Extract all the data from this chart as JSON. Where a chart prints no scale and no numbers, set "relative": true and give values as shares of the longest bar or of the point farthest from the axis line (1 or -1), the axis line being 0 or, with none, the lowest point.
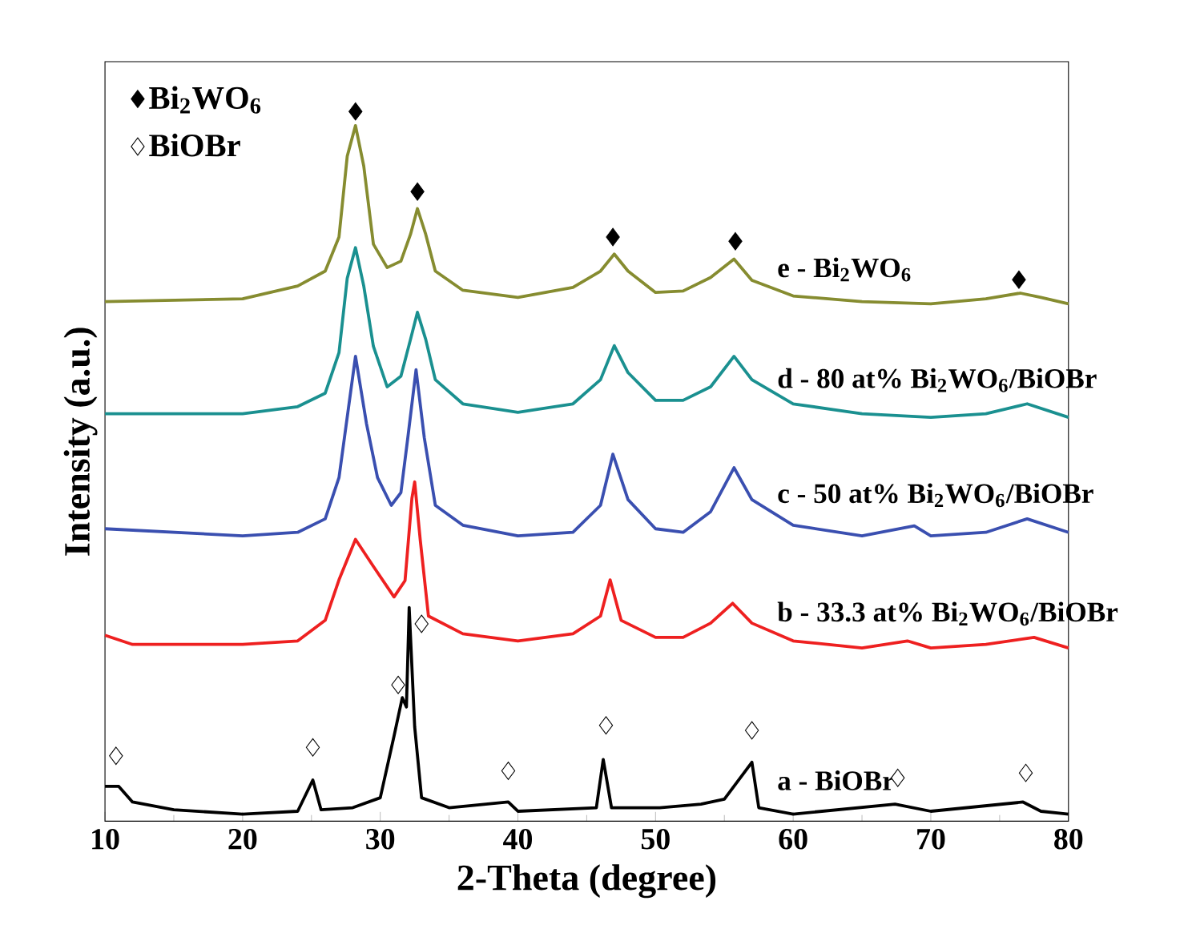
{
  "chart_data": {
    "type": "line",
    "relative": true,
    "xlabel": "2-Theta (degree)",
    "ylabel": "Intensity (a.u.)",
    "xlim": [
      10,
      80
    ],
    "xticks": [
      10,
      20,
      30,
      40,
      50,
      60,
      70,
      80
    ],
    "grid": false,
    "legend": "top left",
    "line_style": "solid",
    "series": [
      {
        "marker": "none",
        "color": "#868c30",
        "x": [
          10,
          20,
          24,
          26,
          27,
          27.6,
          28.2,
          28.8,
          29.5,
          30.5,
          31.5,
          32.2,
          32.7,
          33.3,
          34,
          36,
          40,
          44,
          46,
          47,
          48,
          50,
          52,
          54,
          55.7,
          57,
          60,
          65,
          70,
          74,
          76.5,
          78,
          80
        ],
        "values": [
          0.732,
          0.736,
          0.754,
          0.775,
          0.823,
          0.937,
          0.98,
          0.923,
          0.813,
          0.78,
          0.789,
          0.827,
          0.863,
          0.827,
          0.775,
          0.748,
          0.738,
          0.752,
          0.775,
          0.799,
          0.775,
          0.745,
          0.747,
          0.766,
          0.792,
          0.762,
          0.74,
          0.732,
          0.729,
          0.736,
          0.744,
          0.738,
          0.729
        ]
      },
      {
        "marker": "none",
        "color": "#1a9090",
        "x": [
          10,
          20,
          24,
          26,
          27,
          27.6,
          28.2,
          28.8,
          29.5,
          30.5,
          31.5,
          32.2,
          32.7,
          33.3,
          34,
          36,
          40,
          44,
          46,
          47,
          48,
          50,
          52,
          54,
          55.7,
          57,
          60,
          65,
          70,
          74,
          77,
          80
        ],
        "values": [
          0.574,
          0.574,
          0.584,
          0.603,
          0.66,
          0.765,
          0.808,
          0.754,
          0.669,
          0.612,
          0.627,
          0.679,
          0.717,
          0.679,
          0.622,
          0.588,
          0.576,
          0.588,
          0.622,
          0.67,
          0.632,
          0.593,
          0.593,
          0.612,
          0.655,
          0.622,
          0.588,
          0.574,
          0.569,
          0.574,
          0.588,
          0.569
        ]
      },
      {
        "marker": "none",
        "color": "#3a4fb0",
        "x": [
          10,
          20,
          24,
          26,
          27,
          27.4,
          28.2,
          29,
          29.8,
          30.8,
          31.5,
          32,
          32.6,
          33.2,
          34,
          36,
          40,
          44,
          46,
          46.9,
          48,
          50,
          52,
          54,
          55.7,
          57,
          60,
          65,
          68.8,
          70,
          74,
          77,
          80
        ],
        "values": [
          0.412,
          0.402,
          0.407,
          0.426,
          0.484,
          0.541,
          0.655,
          0.56,
          0.484,
          0.445,
          0.463,
          0.54,
          0.636,
          0.54,
          0.445,
          0.417,
          0.402,
          0.407,
          0.445,
          0.517,
          0.453,
          0.412,
          0.407,
          0.436,
          0.498,
          0.453,
          0.417,
          0.402,
          0.416,
          0.402,
          0.407,
          0.426,
          0.407
        ]
      },
      {
        "marker": "none",
        "color": "#ee2020",
        "x": [
          10,
          12,
          20,
          24,
          26,
          27,
          28.2,
          29.5,
          31,
          31.8,
          32.3,
          32.5,
          32.9,
          33.5,
          36,
          40,
          44,
          46,
          46.7,
          47.5,
          50,
          52,
          54,
          55.6,
          57,
          60,
          65,
          68.3,
          70,
          74,
          77.5,
          80
        ],
        "values": [
          0.262,
          0.249,
          0.249,
          0.254,
          0.283,
          0.34,
          0.397,
          0.359,
          0.316,
          0.339,
          0.455,
          0.478,
          0.397,
          0.289,
          0.264,
          0.254,
          0.264,
          0.289,
          0.34,
          0.283,
          0.259,
          0.259,
          0.279,
          0.307,
          0.279,
          0.254,
          0.244,
          0.254,
          0.244,
          0.249,
          0.259,
          0.244
        ]
      },
      {
        "marker": "none",
        "color": "#000000",
        "x": [
          10,
          11,
          12,
          15,
          20,
          24,
          25.1,
          25.7,
          28,
          30,
          31,
          31.6,
          31.9,
          32.1,
          32.5,
          33,
          35,
          39.3,
          40,
          45.7,
          46.2,
          46.8,
          48,
          50.3,
          53.3,
          55,
          57,
          57.5,
          60,
          67.4,
          70,
          76.7,
          78,
          80
        ],
        "values": [
          0.049,
          0.049,
          0.027,
          0.016,
          0.01,
          0.014,
          0.058,
          0.016,
          0.019,
          0.033,
          0.12,
          0.174,
          0.161,
          0.301,
          0.133,
          0.033,
          0.019,
          0.027,
          0.014,
          0.019,
          0.087,
          0.019,
          0.019,
          0.019,
          0.024,
          0.031,
          0.083,
          0.019,
          0.01,
          0.024,
          0.014,
          0.027,
          0.014,
          0.01
        ]
      },
      {
        "type": "scatter",
        "name": "Bi$_{2}$WO$_{6}$",
        "marker": "diamond",
        "color": "#000000",
        "x": [
          28.2,
          32.7,
          46.9,
          55.8,
          76.4
        ],
        "values": [
          1.0,
          0.887,
          0.823,
          0.817,
          0.763
        ]
      },
      {
        "type": "scatter",
        "name": "BiOBr",
        "marker": "diamond",
        "color": "#ffffff",
        "x": [
          10.8,
          25.1,
          31.3,
          33.0,
          39.3,
          46.4,
          57.0,
          67.6,
          76.9
        ],
        "values": [
          0.092,
          0.104,
          0.192,
          0.278,
          0.071,
          0.135,
          0.128,
          0.061,
          0.068
        ]
      }
    ],
    "annotations": [
      "e - Bi$_{2}$WO$_{6}$",
      "d - 80 at% Bi$_{2}$WO$_{6}$/BiOBr",
      "c - 50 at% Bi$_{2}$WO$_{6}$/BiOBr",
      "b - 33.3 at% Bi$_{2}$WO$_{6}$/BiOBr",
      "a - BiOBr"
    ]
  }
}
